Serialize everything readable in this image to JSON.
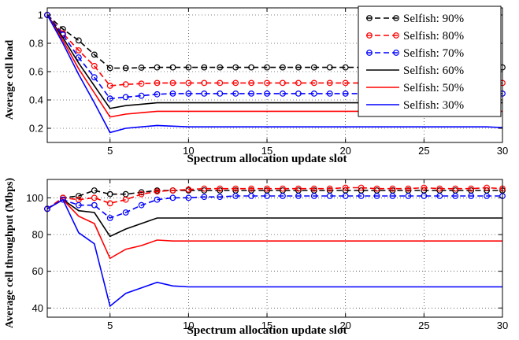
{
  "chart_data": [
    {
      "type": "line",
      "xlabel": "Spectrum allocation update slot",
      "ylabel": "Average cell load",
      "xlim": [
        1,
        30
      ],
      "ylim": [
        0.1,
        1.05
      ],
      "xticks": [
        5,
        10,
        15,
        20,
        25,
        30
      ],
      "yticks": [
        0.2,
        0.4,
        0.6,
        0.8,
        1
      ],
      "ytick_labels": [
        "0.2",
        "0.4",
        "0.6",
        "0.8",
        "1"
      ],
      "grid": true,
      "legend_position": "top-right",
      "x": [
        1,
        2,
        3,
        4,
        5,
        6,
        7,
        8,
        9,
        10,
        11,
        12,
        13,
        14,
        15,
        16,
        17,
        18,
        19,
        20,
        21,
        22,
        23,
        24,
        25,
        26,
        27,
        28,
        29,
        30
      ],
      "series": [
        {
          "name": "Selfish: 90%",
          "color": "#000000",
          "dashed": true,
          "marker": true,
          "values": [
            1,
            0.9,
            0.82,
            0.72,
            0.625,
            0.625,
            0.628,
            0.63,
            0.63,
            0.63,
            0.63,
            0.63,
            0.63,
            0.63,
            0.63,
            0.63,
            0.63,
            0.63,
            0.63,
            0.63,
            0.63,
            0.63,
            0.63,
            0.63,
            0.63,
            0.63,
            0.63,
            0.63,
            0.63,
            0.63
          ]
        },
        {
          "name": "Selfish: 80%",
          "color": "#ff0000",
          "dashed": true,
          "marker": true,
          "values": [
            1,
            0.87,
            0.75,
            0.64,
            0.5,
            0.51,
            0.515,
            0.52,
            0.52,
            0.52,
            0.52,
            0.52,
            0.52,
            0.52,
            0.52,
            0.52,
            0.52,
            0.52,
            0.52,
            0.52,
            0.52,
            0.52,
            0.52,
            0.52,
            0.52,
            0.52,
            0.52,
            0.52,
            0.52,
            0.52
          ]
        },
        {
          "name": "Selfish: 70%",
          "color": "#0000ff",
          "dashed": true,
          "marker": true,
          "values": [
            1,
            0.86,
            0.7,
            0.56,
            0.41,
            0.42,
            0.43,
            0.44,
            0.445,
            0.445,
            0.445,
            0.445,
            0.445,
            0.445,
            0.445,
            0.445,
            0.445,
            0.445,
            0.445,
            0.445,
            0.445,
            0.445,
            0.445,
            0.445,
            0.445,
            0.445,
            0.445,
            0.445,
            0.445,
            0.445
          ]
        },
        {
          "name": "Selfish: 60%",
          "color": "#000000",
          "dashed": false,
          "marker": false,
          "values": [
            1,
            0.84,
            0.66,
            0.5,
            0.34,
            0.36,
            0.37,
            0.38,
            0.38,
            0.38,
            0.38,
            0.38,
            0.38,
            0.38,
            0.38,
            0.38,
            0.38,
            0.38,
            0.38,
            0.38,
            0.38,
            0.38,
            0.38,
            0.38,
            0.38,
            0.38,
            0.38,
            0.38,
            0.38,
            0.38
          ]
        },
        {
          "name": "Selfish: 50%",
          "color": "#ff0000",
          "dashed": false,
          "marker": false,
          "values": [
            1,
            0.82,
            0.62,
            0.45,
            0.28,
            0.3,
            0.31,
            0.32,
            0.32,
            0.32,
            0.32,
            0.32,
            0.32,
            0.32,
            0.32,
            0.32,
            0.32,
            0.32,
            0.32,
            0.32,
            0.32,
            0.32,
            0.32,
            0.32,
            0.32,
            0.32,
            0.32,
            0.32,
            0.32,
            0.32
          ]
        },
        {
          "name": "Selfish: 30%",
          "color": "#0000ff",
          "dashed": false,
          "marker": false,
          "values": [
            1,
            0.8,
            0.58,
            0.38,
            0.17,
            0.2,
            0.21,
            0.22,
            0.215,
            0.21,
            0.21,
            0.21,
            0.21,
            0.21,
            0.21,
            0.21,
            0.21,
            0.21,
            0.21,
            0.21,
            0.21,
            0.21,
            0.21,
            0.21,
            0.21,
            0.21,
            0.21,
            0.21,
            0.21,
            0.205
          ]
        }
      ]
    },
    {
      "type": "line",
      "xlabel": "Spectrum allocation update slot",
      "ylabel": "Average cell throughput (Mbps)",
      "xlim": [
        1,
        30
      ],
      "ylim": [
        35,
        110
      ],
      "xticks": [
        5,
        10,
        15,
        20,
        25,
        30
      ],
      "yticks": [
        40,
        60,
        80,
        100
      ],
      "ytick_labels": [
        "40",
        "60",
        "80",
        "100"
      ],
      "grid": true,
      "x": [
        1,
        2,
        3,
        4,
        5,
        6,
        7,
        8,
        9,
        10,
        11,
        12,
        13,
        14,
        15,
        16,
        17,
        18,
        19,
        20,
        21,
        22,
        23,
        24,
        25,
        26,
        27,
        28,
        29,
        30
      ],
      "series": [
        {
          "name": "Selfish: 90%",
          "color": "#000000",
          "dashed": true,
          "marker": true,
          "values": [
            94,
            100,
            101,
            104,
            102,
            102,
            103,
            104,
            104,
            104,
            104,
            104,
            104,
            104,
            104,
            104,
            104,
            104,
            104,
            104,
            104,
            104,
            104,
            104,
            104,
            104,
            104,
            104,
            104,
            104
          ]
        },
        {
          "name": "Selfish: 80%",
          "color": "#ff0000",
          "dashed": true,
          "marker": true,
          "values": [
            94,
            100,
            99,
            100,
            97,
            99,
            102,
            103.5,
            104,
            104.5,
            105,
            105,
            105,
            105,
            105,
            105,
            105,
            105,
            105,
            105.5,
            105.5,
            105,
            105,
            105,
            105.5,
            105,
            105,
            105,
            105.5,
            105
          ]
        },
        {
          "name": "Selfish: 70%",
          "color": "#0000ff",
          "dashed": true,
          "marker": true,
          "values": [
            94,
            99,
            96,
            96,
            89,
            92,
            96,
            99,
            100,
            100,
            100.5,
            100.5,
            101,
            101,
            101,
            101,
            101,
            101,
            101,
            101,
            101,
            101,
            101,
            101,
            101,
            101,
            101,
            101,
            101,
            101
          ]
        },
        {
          "name": "Selfish: 60%",
          "color": "#000000",
          "dashed": false,
          "marker": false,
          "values": [
            94,
            99,
            93,
            92,
            79,
            83,
            86,
            89,
            89,
            89,
            89,
            89,
            89,
            89,
            89,
            89,
            89,
            89,
            89,
            89,
            89,
            89,
            89,
            89,
            89,
            89,
            89,
            89,
            89,
            89
          ]
        },
        {
          "name": "Selfish: 50%",
          "color": "#ff0000",
          "dashed": false,
          "marker": false,
          "values": [
            94,
            99,
            90,
            86,
            67,
            72,
            74,
            77,
            76.5,
            76.5,
            76.5,
            76.5,
            76.5,
            76.5,
            76.5,
            76.5,
            76.5,
            76.5,
            76.5,
            76.5,
            76.5,
            76.5,
            76.5,
            76.5,
            76.5,
            76.5,
            76.5,
            76.5,
            76.5,
            76.5
          ]
        },
        {
          "name": "Selfish: 30%",
          "color": "#0000ff",
          "dashed": false,
          "marker": false,
          "values": [
            94,
            99,
            81,
            75,
            41,
            48,
            51,
            54,
            52,
            51.5,
            51.5,
            51.5,
            51.5,
            51.5,
            51.5,
            51.5,
            51.5,
            51.5,
            51.5,
            51.5,
            51.5,
            51.5,
            51.5,
            51.5,
            51.5,
            51.5,
            51.5,
            51.5,
            51.5,
            51.5
          ]
        }
      ]
    }
  ]
}
